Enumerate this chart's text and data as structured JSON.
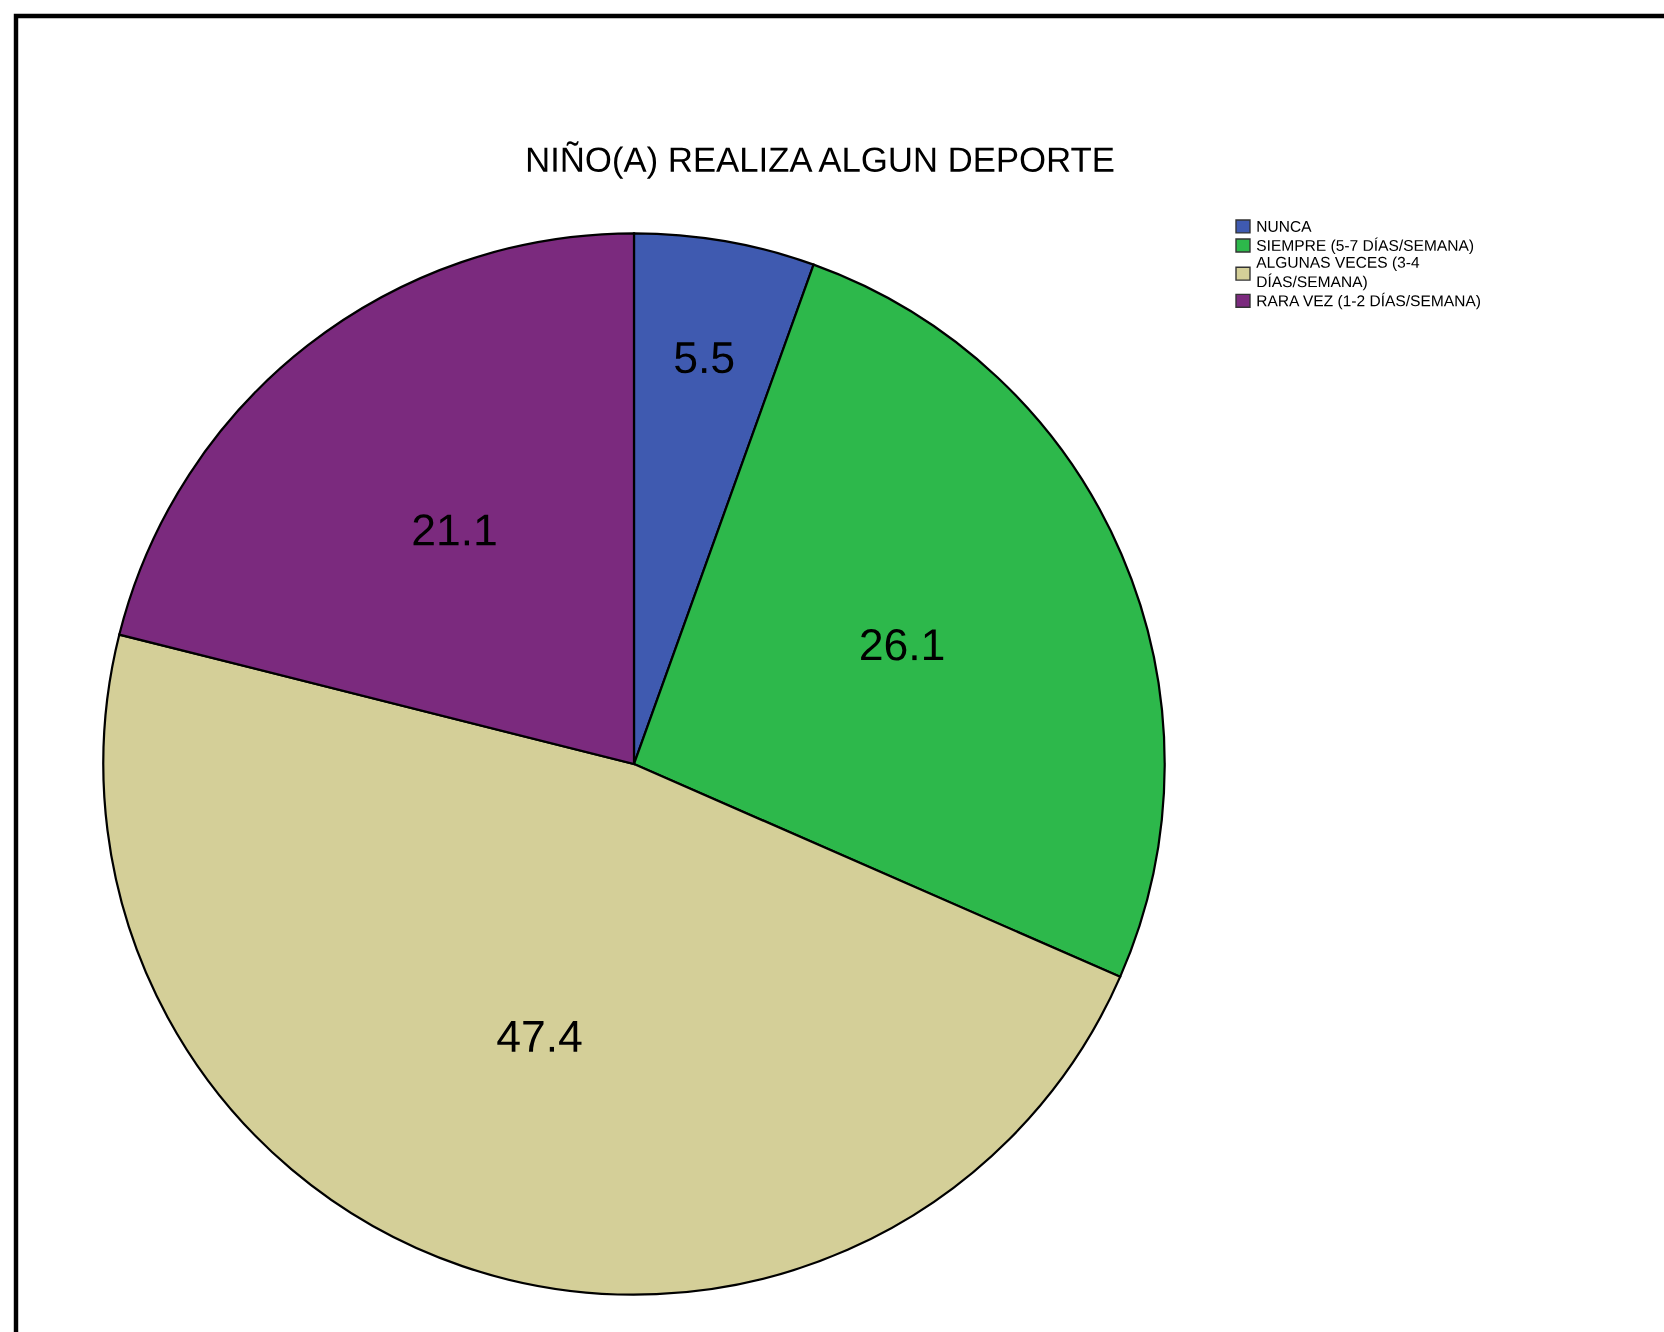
{
  "chart_data": {
    "type": "pie",
    "title": "NIÑO(A) REALIZA ALGUN DEPORTE",
    "categories": [
      "NUNCA",
      "SIEMPRE (5-7 DÍAS/SEMANA)",
      "ALGUNAS VECES (3-4 DÍAS/SEMANA)",
      "RARA VEZ (1-2 DÍAS/SEMANA)"
    ],
    "values": [
      5.5,
      26.1,
      47.4,
      21.1
    ],
    "colors": [
      "#3f5ab0",
      "#2db84b",
      "#d4cf98",
      "#7b2a7e"
    ],
    "data_labels": true,
    "legend": "top right"
  }
}
